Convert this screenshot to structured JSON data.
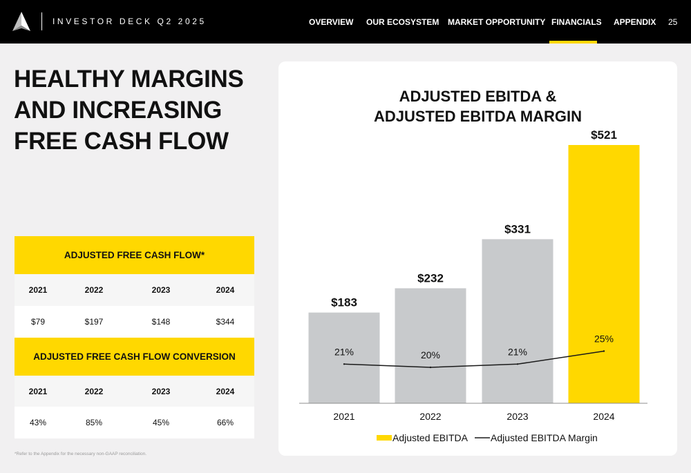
{
  "header": {
    "deck_title": "INVESTOR DECK Q2 2025",
    "nav": [
      {
        "label": "OVERVIEW"
      },
      {
        "label": "OUR ECOSYSTEM"
      },
      {
        "label": "MARKET OPPORTUNITY"
      },
      {
        "label": "FINANCIALS",
        "active": true
      },
      {
        "label": "APPENDIX"
      }
    ],
    "page_number": "25"
  },
  "headline": {
    "line1": "HEALTHY MARGINS",
    "line2": "AND INCREASING",
    "line3": "FREE CASH FLOW"
  },
  "fcf_table": {
    "title": "ADJUSTED FREE CASH FLOW*",
    "years": [
      "2021",
      "2022",
      "2023",
      "2024"
    ],
    "values": [
      "$79",
      "$197",
      "$148",
      "$344"
    ]
  },
  "conversion_table": {
    "title": "ADJUSTED FREE CASH FLOW CONVERSION",
    "years": [
      "2021",
      "2022",
      "2023",
      "2024"
    ],
    "values": [
      "43%",
      "85%",
      "45%",
      "66%"
    ]
  },
  "footnote": "*Refer to the Appendix for the necessary non-GAAP reconciliation.",
  "colors": {
    "accent": "#ffd800",
    "bar_gray": "#c8cacc",
    "header_bg": "#000000",
    "page_bg": "#f1f0f1"
  },
  "chart_data": {
    "type": "bar",
    "title_line1": "ADJUSTED EBITDA &",
    "title_line2": "ADJUSTED EBITDA MARGIN",
    "categories": [
      "2021",
      "2022",
      "2023",
      "2024"
    ],
    "bar_colors": [
      "#c8cacc",
      "#c8cacc",
      "#c8cacc",
      "#ffd800"
    ],
    "series": [
      {
        "name": "Adjusted EBITDA",
        "values": [
          183,
          232,
          331,
          521
        ],
        "labels": [
          "$183",
          "$232",
          "$331",
          "$521"
        ],
        "kind": "bar"
      },
      {
        "name": "Adjusted EBITDA Margin",
        "values": [
          21,
          20,
          21,
          25
        ],
        "labels": [
          "21%",
          "20%",
          "21%",
          "25%"
        ],
        "kind": "line"
      }
    ],
    "legend_position": "bottom",
    "grid": false
  }
}
